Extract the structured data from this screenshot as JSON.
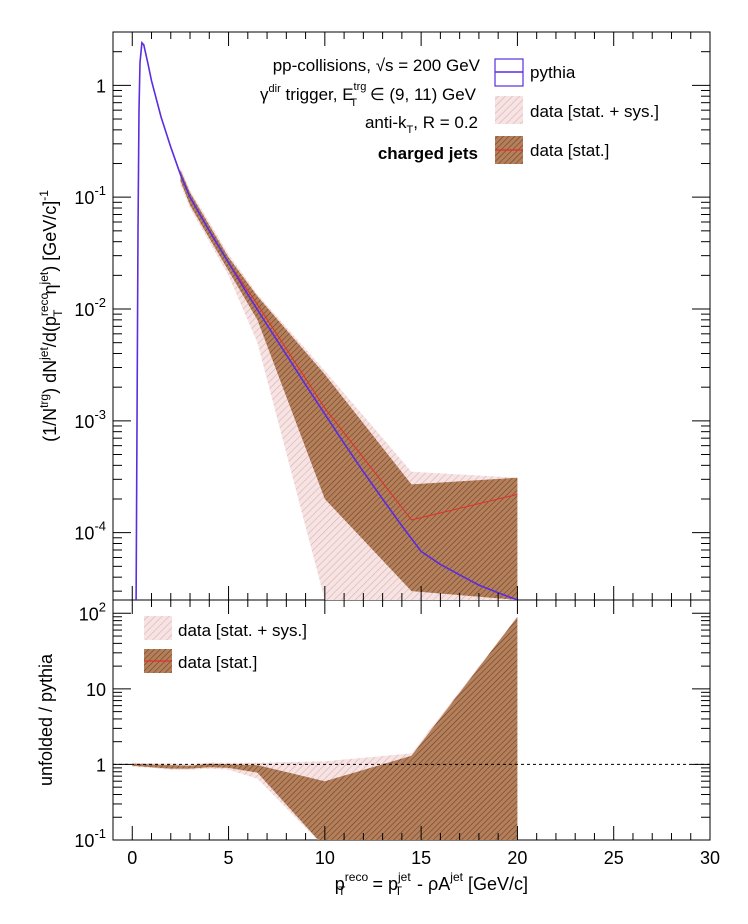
{
  "colors": {
    "pythia": "#5b2ce0",
    "sys_fill": "#f3dcdc",
    "sys_hatch": "#e6b8b8",
    "stat_fill": "#b07c5a",
    "stat_hatch": "#7a4a2a",
    "stat_line": "#e0302a"
  },
  "top_panel": {
    "ylabel_parts": [
      "(1/N",
      "trg",
      ") dN",
      "jet",
      "/d(p",
      "reco",
      "T",
      " η",
      "jet",
      ") [GeV/c]",
      "-1"
    ],
    "annotations": {
      "line1_pre": "pp-collisions, √s = 200 GeV",
      "line2_gamma": "γ",
      "line2_dir": "dir",
      "line2_trigger": " trigger, E",
      "line2_trg": "trg",
      "line2_T": "T",
      "line2_range": " ∈ (9, 11) GeV",
      "line3_pre": "anti-k",
      "line3_T": "T",
      "line3_post": ", R = 0.2",
      "line4": "charged jets"
    },
    "legend": {
      "pythia": "pythia",
      "sys": "data [stat. + sys.]",
      "stat": "data [stat.]"
    },
    "yticks": [
      {
        "base": "10",
        "exp": "-4",
        "v": 0.0001
      },
      {
        "base": "10",
        "exp": "-3",
        "v": 0.001
      },
      {
        "base": "10",
        "exp": "-2",
        "v": 0.01
      },
      {
        "base": "10",
        "exp": "-1",
        "v": 0.1
      },
      {
        "base": "1",
        "exp": "",
        "v": 1
      }
    ]
  },
  "bottom_panel": {
    "ylabel": "unfolded / pythia",
    "legend": {
      "sys": "data [stat. + sys.]",
      "stat": "data [stat.]"
    },
    "yticks": [
      {
        "base": "10",
        "exp": "-1",
        "v": 0.1
      },
      {
        "base": "1",
        "exp": "",
        "v": 1
      },
      {
        "base": "10",
        "exp": "",
        "v": 10
      },
      {
        "base": "10",
        "exp": "2",
        "v": 100
      }
    ]
  },
  "xaxis": {
    "label_parts": [
      "p",
      "reco",
      "T",
      " = p",
      "jet",
      "T",
      " - ρA",
      "jet",
      " [GeV/c]"
    ],
    "ticks": [
      "0",
      "5",
      "10",
      "15",
      "20",
      "25",
      "30"
    ]
  },
  "chart_data": [
    {
      "type": "line",
      "panel": "top",
      "xlim": [
        -1,
        30
      ],
      "ylim": [
        2.5e-05,
        3
      ],
      "yscale": "log",
      "series": [
        {
          "name": "pythia",
          "x": [
            0.2,
            0.3,
            0.35,
            0.4,
            0.5,
            0.6,
            0.8,
            1.0,
            1.5,
            2.0,
            2.5,
            3,
            4,
            5,
            6,
            7,
            8,
            9,
            10,
            11,
            12,
            13,
            14,
            15,
            16,
            17,
            18,
            19,
            20
          ],
          "y": [
            2.5e-05,
            0.05,
            0.6,
            1.6,
            2.4,
            2.3,
            1.6,
            1.1,
            0.52,
            0.28,
            0.16,
            0.1,
            0.05,
            0.026,
            0.0135,
            0.0072,
            0.0039,
            0.0021,
            0.00115,
            0.00063,
            0.00035,
            0.0002,
            0.000115,
            6.8e-05,
            5.2e-05,
            4.2e-05,
            3.4e-05,
            2.9e-05,
            2.5e-05
          ]
        },
        {
          "name": "data [stat.]",
          "x": [
            2.5,
            3,
            4,
            5,
            6.5,
            10,
            14.5,
            20
          ],
          "y": [
            0.16,
            0.1,
            0.05,
            0.026,
            0.011,
            0.0013,
            0.00013,
            0.00022
          ],
          "low": [
            0.14,
            0.085,
            0.043,
            0.022,
            0.008,
            0.0002,
            3e-05,
            2.5e-05
          ],
          "high": [
            0.175,
            0.11,
            0.056,
            0.029,
            0.013,
            0.0026,
            0.00027,
            0.00031
          ]
        },
        {
          "name": "data [stat. + sys.]",
          "x": [
            2.5,
            3,
            4,
            5,
            6.5,
            10,
            14.5,
            20
          ],
          "low": [
            0.13,
            0.08,
            0.04,
            0.02,
            0.005,
            2.5e-05,
            2.5e-05,
            2.5e-05
          ],
          "high": [
            0.185,
            0.115,
            0.06,
            0.031,
            0.0135,
            0.0028,
            0.00035,
            0.00031
          ]
        }
      ]
    },
    {
      "type": "area",
      "panel": "bottom",
      "xlim": [
        -1,
        30
      ],
      "ylim": [
        0.1,
        150
      ],
      "yscale": "log",
      "reference_line": 1,
      "series": [
        {
          "name": "data [stat. + sys.]",
          "x": [
            0,
            1,
            2,
            3,
            4,
            5,
            6.5,
            10,
            14.5,
            20
          ],
          "low": [
            0.93,
            0.9,
            0.85,
            0.85,
            0.88,
            0.85,
            0.65,
            0.08,
            0.08,
            0.08
          ],
          "high": [
            1.05,
            1.04,
            1.03,
            1.0,
            1.06,
            1.05,
            1.05,
            1.1,
            1.4,
            90
          ]
        },
        {
          "name": "data [stat.]",
          "x": [
            0,
            1,
            2,
            3,
            4,
            5,
            6.5,
            10,
            14.5,
            20
          ],
          "low": [
            0.96,
            0.92,
            0.88,
            0.88,
            0.92,
            0.9,
            0.78,
            0.08,
            0.08,
            0.08
          ],
          "high": [
            1.02,
            1.0,
            0.98,
            0.96,
            1.02,
            1.0,
            0.98,
            0.6,
            1.3,
            90
          ]
        }
      ]
    }
  ]
}
